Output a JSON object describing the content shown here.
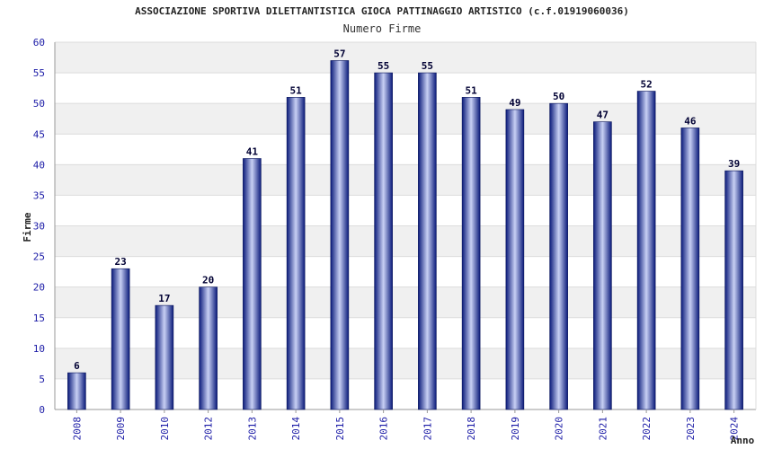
{
  "chart_data": {
    "type": "bar",
    "title": "ASSOCIAZIONE SPORTIVA DILETTANTISTICA GIOCA PATTINAGGIO ARTISTICO (c.f.01919060036)",
    "subtitle": "Numero Firme",
    "xlabel": "Anno",
    "ylabel": "Firme",
    "categories": [
      "2008",
      "2009",
      "2010",
      "2012",
      "2013",
      "2014",
      "2015",
      "2016",
      "2017",
      "2018",
      "2019",
      "2020",
      "2021",
      "2022",
      "2023",
      "2024"
    ],
    "values": [
      6,
      23,
      17,
      20,
      41,
      51,
      57,
      55,
      55,
      51,
      49,
      50,
      47,
      52,
      46,
      39
    ],
    "ylim": [
      0,
      60
    ],
    "yticks": [
      0,
      5,
      10,
      15,
      20,
      25,
      30,
      35,
      40,
      45,
      50,
      55,
      60
    ],
    "grid": true,
    "colors": {
      "bar_dark": "#0a1a7a",
      "bar_light": "#c8d0f4",
      "band": "#f0f0f0",
      "tick_text": "#1a1aa6"
    }
  }
}
